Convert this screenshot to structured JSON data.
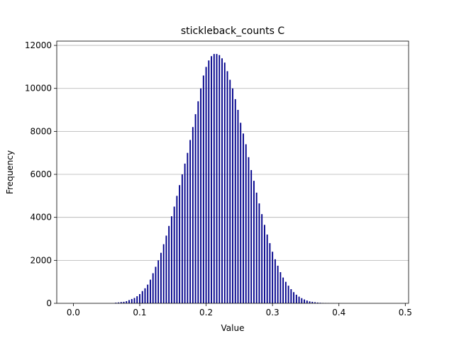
{
  "chart_data": {
    "type": "bar",
    "title": "stickleback_counts C",
    "xlabel": "Value",
    "ylabel": "Frequency",
    "xlim": [
      -0.025,
      0.505
    ],
    "ylim": [
      0,
      12200
    ],
    "x_ticks": [
      0.0,
      0.1,
      0.2,
      0.3,
      0.4,
      0.5
    ],
    "x_tick_labels": [
      "0.0",
      "0.1",
      "0.2",
      "0.3",
      "0.4",
      "0.5"
    ],
    "y_ticks": [
      0,
      2000,
      4000,
      6000,
      8000,
      10000,
      12000
    ],
    "y_tick_labels": [
      "0",
      "2000",
      "4000",
      "6000",
      "8000",
      "10000",
      "12000"
    ],
    "grid": "horizontal",
    "bar_color": "#00008b",
    "bin_width": 0.004,
    "x": [
      0.064,
      0.068,
      0.072,
      0.076,
      0.08,
      0.084,
      0.088,
      0.092,
      0.096,
      0.1,
      0.104,
      0.108,
      0.112,
      0.116,
      0.12,
      0.124,
      0.128,
      0.132,
      0.136,
      0.14,
      0.144,
      0.148,
      0.152,
      0.156,
      0.16,
      0.164,
      0.168,
      0.172,
      0.176,
      0.18,
      0.184,
      0.188,
      0.192,
      0.196,
      0.2,
      0.204,
      0.208,
      0.212,
      0.216,
      0.22,
      0.224,
      0.228,
      0.232,
      0.236,
      0.24,
      0.244,
      0.248,
      0.252,
      0.256,
      0.26,
      0.264,
      0.268,
      0.272,
      0.276,
      0.28,
      0.284,
      0.288,
      0.292,
      0.296,
      0.3,
      0.304,
      0.308,
      0.312,
      0.316,
      0.32,
      0.324,
      0.328,
      0.332,
      0.336,
      0.34,
      0.344,
      0.348,
      0.352,
      0.356,
      0.36,
      0.364,
      0.368,
      0.372,
      0.376,
      0.38,
      0.384,
      0.388,
      0.392,
      0.396,
      0.4
    ],
    "values": [
      30,
      40,
      60,
      70,
      100,
      150,
      200,
      250,
      330,
      430,
      570,
      700,
      870,
      1100,
      1400,
      1700,
      2000,
      2350,
      2750,
      3150,
      3600,
      4050,
      4500,
      5000,
      5500,
      6000,
      6500,
      7000,
      7600,
      8200,
      8800,
      9400,
      10000,
      10600,
      11000,
      11300,
      11500,
      11600,
      11600,
      11550,
      11400,
      11200,
      10800,
      10400,
      10000,
      9500,
      9000,
      8400,
      7900,
      7400,
      6800,
      6200,
      5700,
      5150,
      4650,
      4150,
      3650,
      3200,
      2800,
      2400,
      2050,
      1750,
      1450,
      1200,
      1000,
      820,
      660,
      520,
      400,
      310,
      240,
      180,
      130,
      90,
      70,
      50,
      35,
      25,
      18,
      12,
      8,
      5,
      3,
      2,
      1
    ]
  }
}
